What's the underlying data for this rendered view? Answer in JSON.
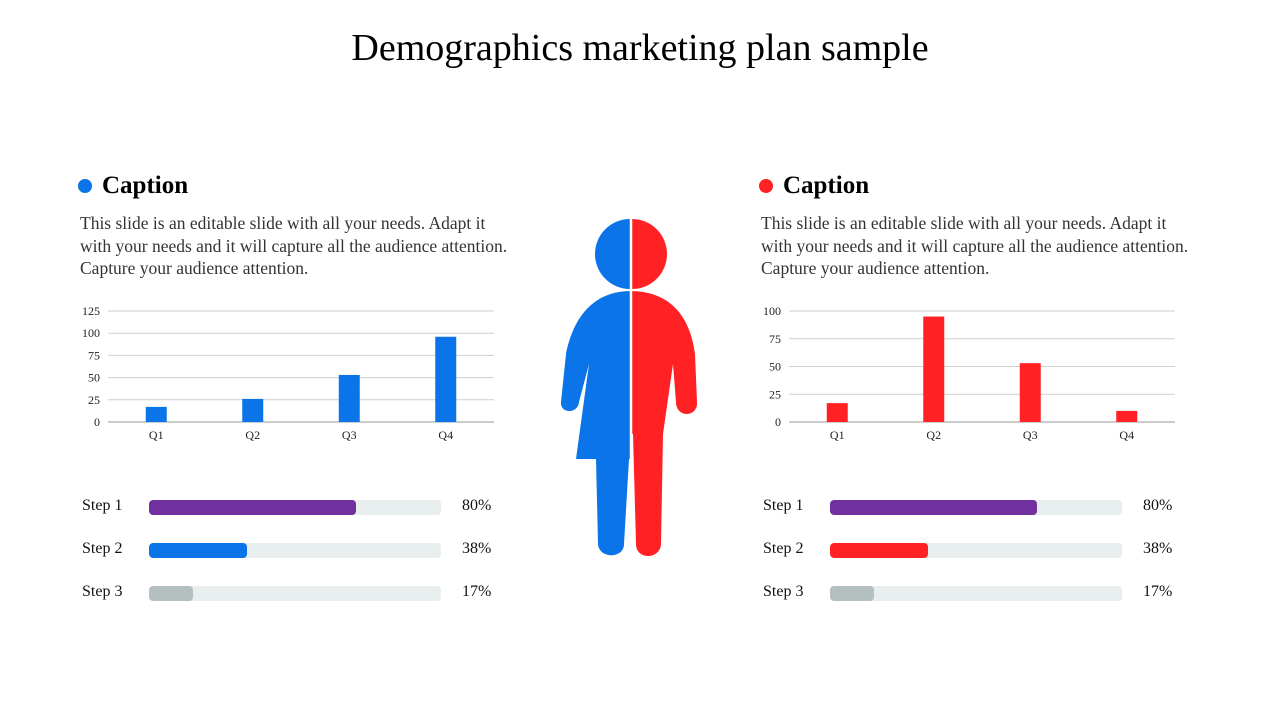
{
  "title": "Demographics marketing plan sample",
  "colors": {
    "blue": "#0a74e8",
    "red": "#ff2124",
    "purple": "#7030a0",
    "gray": "#b4bfc0",
    "track": "#e8eded"
  },
  "figure_icon": "person-half-male-half-female-icon",
  "left": {
    "caption": "Caption",
    "description": "This slide is an editable slide with all your needs. Adapt it with your needs and it will capture all the audience attention. Capture your audience attention.",
    "steps": [
      {
        "label": "Step 1",
        "value": 80,
        "display": "80%",
        "color": "#7030a0"
      },
      {
        "label": "Step 2",
        "value": 38,
        "display": "38%",
        "color": "#0a74e8"
      },
      {
        "label": "Step 3",
        "value": 17,
        "display": "17%",
        "color": "#b4bfc0"
      }
    ]
  },
  "right": {
    "caption": "Caption",
    "description": "This slide is an editable slide with all your needs. Adapt it with your needs and it will capture all the audience attention. Capture your audience attention.",
    "steps": [
      {
        "label": "Step 1",
        "value": 80,
        "display": "80%",
        "color": "#7030a0"
      },
      {
        "label": "Step 2",
        "value": 38,
        "display": "38%",
        "color": "#ff2124"
      },
      {
        "label": "Step 3",
        "value": 17,
        "display": "17%",
        "color": "#b4bfc0"
      }
    ]
  },
  "chart_data": [
    {
      "type": "bar",
      "categories": [
        "Q1",
        "Q2",
        "Q3",
        "Q4"
      ],
      "values": [
        17,
        26,
        53,
        96
      ],
      "ylim": [
        0,
        125
      ],
      "yticks": [
        0,
        25,
        50,
        75,
        100,
        125
      ],
      "color": "#0a74e8",
      "grid": true,
      "legend": "none"
    },
    {
      "type": "bar",
      "categories": [
        "Q1",
        "Q2",
        "Q3",
        "Q4"
      ],
      "values": [
        17,
        95,
        53,
        10
      ],
      "ylim": [
        0,
        100
      ],
      "yticks": [
        0,
        25,
        50,
        75,
        100
      ],
      "color": "#ff2124",
      "grid": true,
      "legend": "none"
    }
  ]
}
